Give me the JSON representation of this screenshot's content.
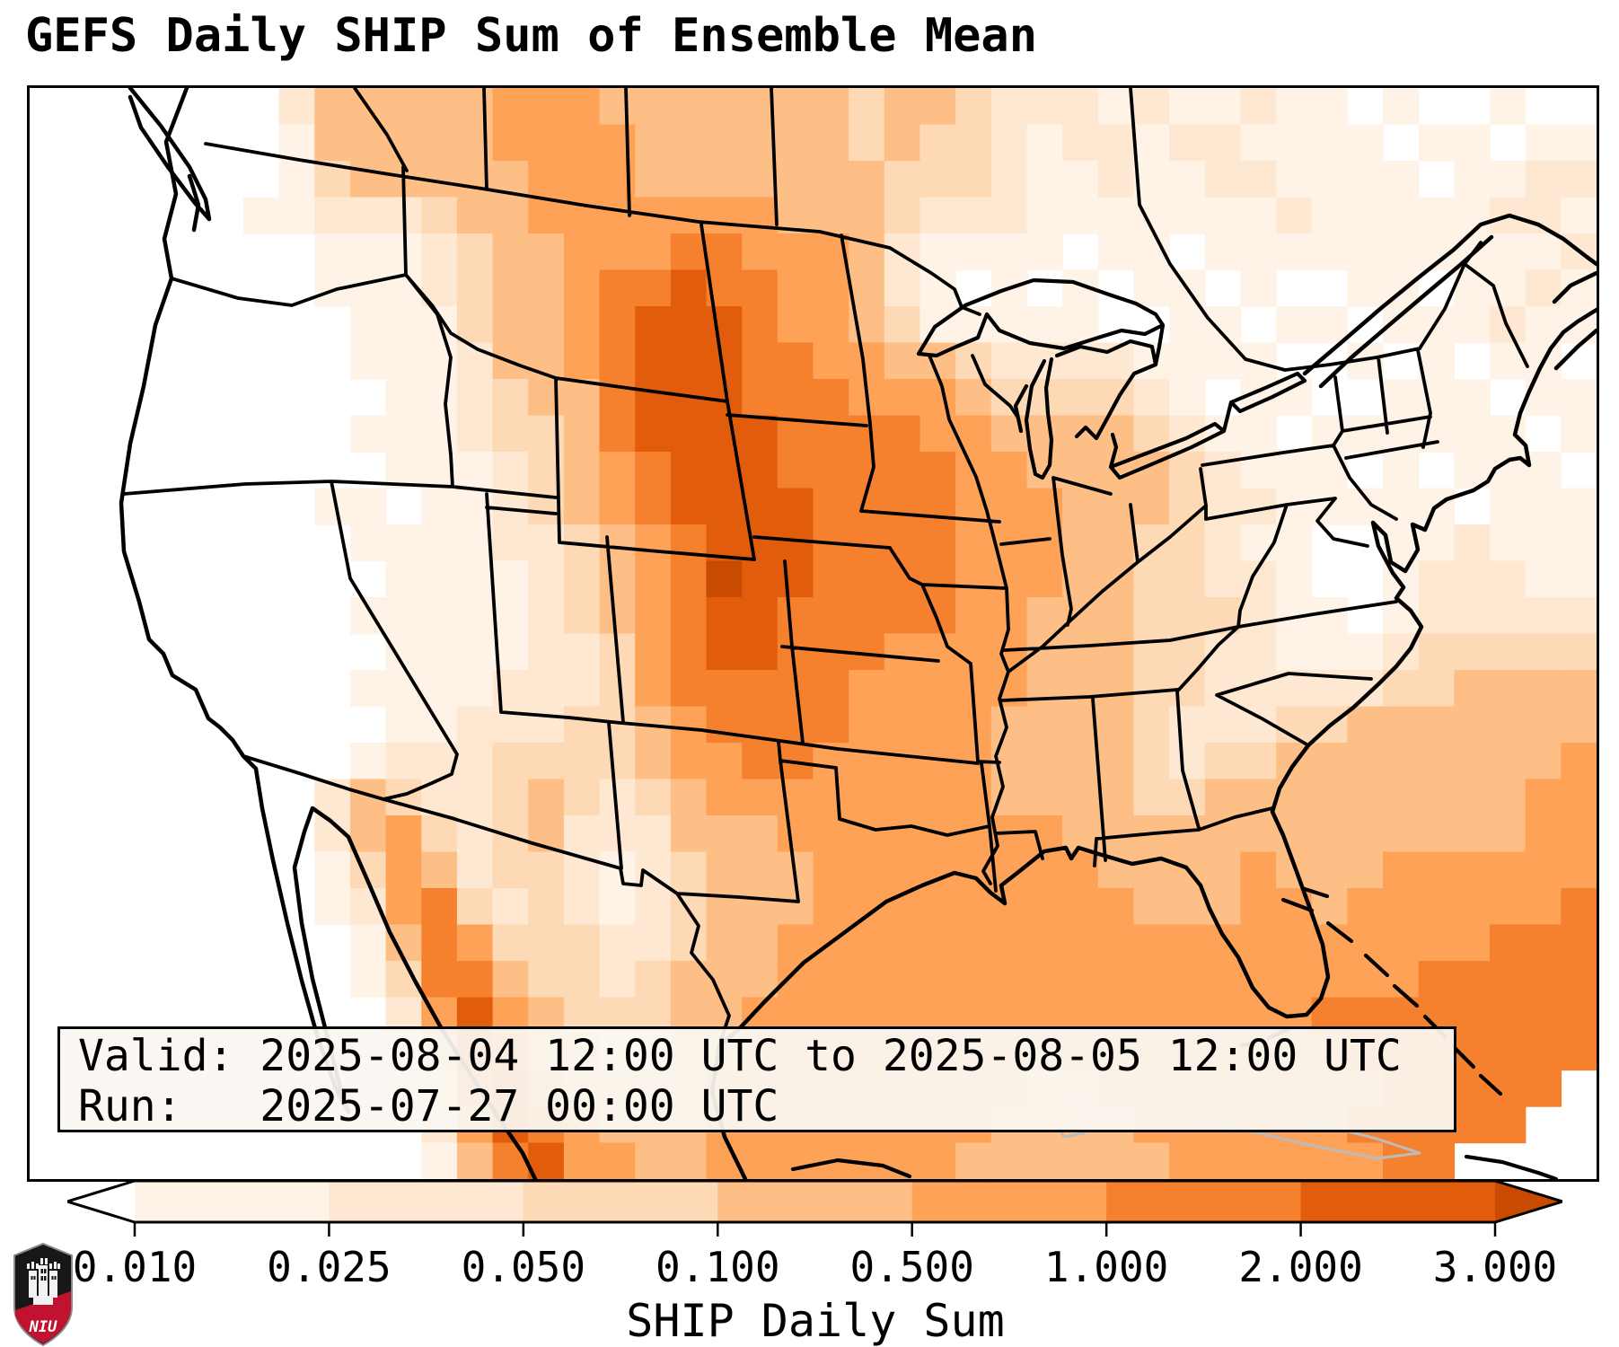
{
  "title": "GEFS Daily SHIP Sum of Ensemble Mean",
  "info_box": {
    "valid_line": "Valid: 2025-08-04 12:00 UTC to 2025-08-05 12:00 UTC",
    "run_line": "Run:   2025-07-27 00:00 UTC"
  },
  "colorbar": {
    "label": "SHIP Daily Sum",
    "ticks": [
      "0.010",
      "0.025",
      "0.050",
      "0.100",
      "0.500",
      "1.000",
      "2.000",
      "3.000"
    ],
    "under_color": "#ffffff",
    "over_color": "#c94b02",
    "segment_colors": [
      "#fef3e6",
      "#fee8d2",
      "#fdd9b5",
      "#fdbf86",
      "#fda257",
      "#f5812e",
      "#e25d0b"
    ],
    "outline_color": "#000000"
  },
  "logo": {
    "text": "NIU"
  },
  "map": {
    "border_color": "#000000",
    "water_outline_color": "#bcbcbc",
    "heatmap": {
      "cols": 44,
      "rows": 30,
      "palette": {
        "1": "#fef3e6",
        "2": "#fee8d2",
        "3": "#fdd9b5",
        "4": "#fdbf86",
        "5": "#fda257",
        "6": "#f5812e",
        "7": "#e25d0b",
        "8": "#c94b02"
      },
      "rows_data": [
        "00000002444445554444444344322212112110100100",
        "00000001444445555444444343321221221111011011",
        "00000001344444555444444433321121122111101122",
        "00000011222344555555544432221111111211111221",
        "00000000111234455566555421111011011111111112",
        "00000000111234456676655421010101101001101121",
        "00000000011134456777655431111100110110111211",
        "00000000011124456777665544322221111001010110",
        "00000000001123446777666555433332101100111011",
        "00000000011123346777766665544443211011111101",
        "00000000001112345677766666554444321110101110",
        "00000000110112345677776666555444322111110111",
        "00000000011112234567776666555443321100112111",
        "00000000001111234568776666555443322100122211",
        "00000000011111234567766666554443332110122222",
        "00000000001111223567766655554443322111233333",
        "00000000011112223566666555554443322222334444",
        "00000000001122233456666555544443222334444444",
        "00000000012223333455665555544443233444444445",
        "00000000243223432345555555544443344444444455",
        "00000000245323422244455555555444444444444455",
        "00000000135423321234445555555544445444555555",
        "00000000125632321234445555555554445545555556",
        "00000000014653332234455555555555555555555666",
        "00000000013664332344455555555555555555566666",
        "00000000002575433344555555555555555566666666",
        "00000000001476443344555555555555555556666666",
        "00000000001367544445555555554455555555666660",
        "00000000000257654445555555544445555556666600",
        "00000000000146755445555555444444555555660000"
      ]
    }
  }
}
